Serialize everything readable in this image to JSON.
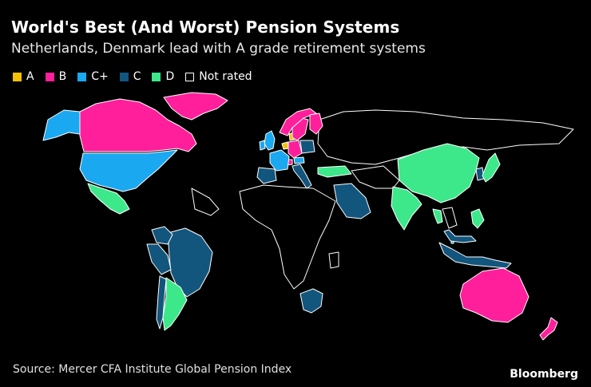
{
  "title": "World's Best (And Worst) Pension Systems",
  "subtitle": "Netherlands, Denmark lead with A grade retirement systems",
  "legend": [
    {
      "label": "A",
      "color": "#f2c200"
    },
    {
      "label": "B",
      "color": "#ff1f9b"
    },
    {
      "label": "C+",
      "color": "#1aa8f0"
    },
    {
      "label": "C",
      "color": "#12557d"
    },
    {
      "label": "D",
      "color": "#3de88a"
    },
    {
      "label": "Not rated",
      "color": "none"
    }
  ],
  "colors": {
    "A": "#f2c200",
    "B": "#ff1f9b",
    "C+": "#1aa8f0",
    "C": "#12557d",
    "D": "#3de88a",
    "not_rated_fill": "#000000",
    "border": "#ffffff"
  },
  "map_regions": [
    {
      "name": "Netherlands",
      "grade": "A"
    },
    {
      "name": "Denmark",
      "grade": "A"
    },
    {
      "name": "Canada",
      "grade": "B"
    },
    {
      "name": "Sweden",
      "grade": "B"
    },
    {
      "name": "Norway",
      "grade": "B"
    },
    {
      "name": "Finland",
      "grade": "B"
    },
    {
      "name": "Switzerland",
      "grade": "B"
    },
    {
      "name": "Germany",
      "grade": "B"
    },
    {
      "name": "Australia",
      "grade": "B"
    },
    {
      "name": "New Zealand",
      "grade": "B"
    },
    {
      "name": "Greenland",
      "grade": "B"
    },
    {
      "name": "United States",
      "grade": "C+"
    },
    {
      "name": "Alaska",
      "grade": "C+"
    },
    {
      "name": "France",
      "grade": "C+"
    },
    {
      "name": "United Kingdom",
      "grade": "C+"
    },
    {
      "name": "Ireland",
      "grade": "C+"
    },
    {
      "name": "Austria",
      "grade": "C+"
    },
    {
      "name": "Singapore",
      "grade": "C+"
    },
    {
      "name": "South Korea",
      "grade": "C"
    },
    {
      "name": "Spain",
      "grade": "C"
    },
    {
      "name": "Poland",
      "grade": "C"
    },
    {
      "name": "Italy",
      "grade": "C"
    },
    {
      "name": "Saudi Arabia",
      "grade": "C"
    },
    {
      "name": "Brazil",
      "grade": "C"
    },
    {
      "name": "Peru",
      "grade": "C"
    },
    {
      "name": "Colombia",
      "grade": "C"
    },
    {
      "name": "Chile",
      "grade": "C"
    },
    {
      "name": "South Africa",
      "grade": "C"
    },
    {
      "name": "Malaysia",
      "grade": "C"
    },
    {
      "name": "Indonesia",
      "grade": "C"
    },
    {
      "name": "Japan",
      "grade": "D"
    },
    {
      "name": "China",
      "grade": "D"
    },
    {
      "name": "India",
      "grade": "D"
    },
    {
      "name": "Mexico",
      "grade": "D"
    },
    {
      "name": "Argentina",
      "grade": "D"
    },
    {
      "name": "Turkey",
      "grade": "D"
    },
    {
      "name": "Philippines",
      "grade": "D"
    },
    {
      "name": "Thailand",
      "grade": "D"
    }
  ],
  "source": "Source: Mercer CFA Institute Global Pension Index",
  "brand": "Bloomberg"
}
